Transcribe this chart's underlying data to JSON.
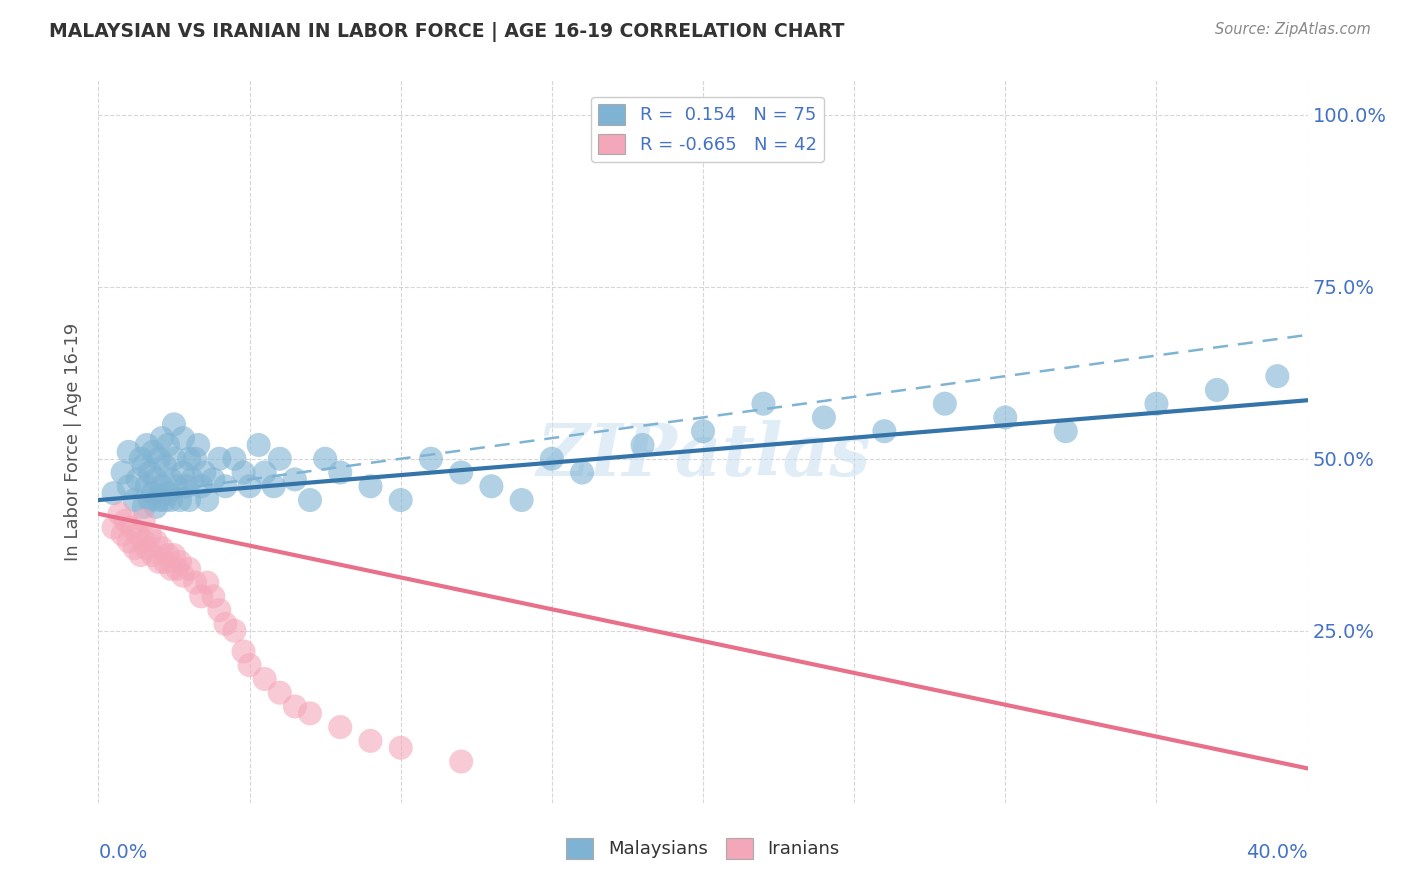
{
  "title": "MALAYSIAN VS IRANIAN IN LABOR FORCE | AGE 16-19 CORRELATION CHART",
  "source": "Source: ZipAtlas.com",
  "ylabel": "In Labor Force | Age 16-19",
  "y_tick_labels": [
    "100.0%",
    "75.0%",
    "50.0%",
    "25.0%"
  ],
  "y_tick_positions": [
    1.0,
    0.75,
    0.5,
    0.25
  ],
  "xlim": [
    0.0,
    0.4
  ],
  "ylim": [
    0.0,
    1.05
  ],
  "legend_r1": "R =  0.154",
  "legend_n1": "N = 75",
  "legend_r2": "R = -0.665",
  "legend_n2": "N = 42",
  "blue_color": "#7fb3d3",
  "pink_color": "#f4a7b9",
  "blue_line_color": "#3574a8",
  "pink_line_color": "#e8708a",
  "dashed_line_color": "#7fb3d3",
  "watermark": "ZIPatlas",
  "blue_line_x0": 0.0,
  "blue_line_y0": 0.44,
  "blue_line_x1": 0.4,
  "blue_line_y1": 0.585,
  "pink_line_x0": 0.0,
  "pink_line_y0": 0.42,
  "pink_line_x1": 0.4,
  "pink_line_y1": 0.05,
  "dashed_line_x0": 0.0,
  "dashed_line_y0": 0.44,
  "dashed_line_x1": 0.4,
  "dashed_line_y1": 0.68,
  "blue_scatter_x": [
    0.005,
    0.008,
    0.01,
    0.01,
    0.012,
    0.013,
    0.014,
    0.015,
    0.015,
    0.016,
    0.016,
    0.017,
    0.017,
    0.018,
    0.018,
    0.019,
    0.019,
    0.02,
    0.02,
    0.021,
    0.021,
    0.022,
    0.022,
    0.023,
    0.023,
    0.024,
    0.024,
    0.025,
    0.025,
    0.026,
    0.027,
    0.028,
    0.028,
    0.029,
    0.03,
    0.03,
    0.031,
    0.032,
    0.033,
    0.034,
    0.035,
    0.036,
    0.038,
    0.04,
    0.042,
    0.045,
    0.048,
    0.05,
    0.053,
    0.055,
    0.058,
    0.06,
    0.065,
    0.07,
    0.075,
    0.08,
    0.09,
    0.1,
    0.11,
    0.12,
    0.13,
    0.14,
    0.15,
    0.16,
    0.18,
    0.2,
    0.22,
    0.24,
    0.26,
    0.28,
    0.3,
    0.32,
    0.35,
    0.37,
    0.39
  ],
  "blue_scatter_y": [
    0.45,
    0.48,
    0.46,
    0.51,
    0.44,
    0.47,
    0.5,
    0.43,
    0.49,
    0.46,
    0.52,
    0.44,
    0.48,
    0.45,
    0.51,
    0.43,
    0.47,
    0.44,
    0.5,
    0.46,
    0.53,
    0.44,
    0.49,
    0.45,
    0.52,
    0.44,
    0.47,
    0.5,
    0.55,
    0.46,
    0.44,
    0.48,
    0.53,
    0.46,
    0.44,
    0.5,
    0.47,
    0.5,
    0.52,
    0.46,
    0.48,
    0.44,
    0.47,
    0.5,
    0.46,
    0.5,
    0.48,
    0.46,
    0.52,
    0.48,
    0.46,
    0.5,
    0.47,
    0.44,
    0.5,
    0.48,
    0.46,
    0.44,
    0.5,
    0.48,
    0.46,
    0.44,
    0.5,
    0.48,
    0.52,
    0.54,
    0.58,
    0.56,
    0.54,
    0.58,
    0.56,
    0.54,
    0.58,
    0.6,
    0.62
  ],
  "pink_scatter_x": [
    0.005,
    0.007,
    0.008,
    0.009,
    0.01,
    0.011,
    0.012,
    0.013,
    0.014,
    0.015,
    0.015,
    0.016,
    0.017,
    0.018,
    0.019,
    0.02,
    0.021,
    0.022,
    0.023,
    0.024,
    0.025,
    0.026,
    0.027,
    0.028,
    0.03,
    0.032,
    0.034,
    0.036,
    0.038,
    0.04,
    0.042,
    0.045,
    0.048,
    0.05,
    0.055,
    0.06,
    0.065,
    0.07,
    0.08,
    0.09,
    0.1,
    0.12
  ],
  "pink_scatter_y": [
    0.4,
    0.42,
    0.39,
    0.41,
    0.38,
    0.4,
    0.37,
    0.39,
    0.36,
    0.38,
    0.41,
    0.37,
    0.39,
    0.36,
    0.38,
    0.35,
    0.37,
    0.35,
    0.36,
    0.34,
    0.36,
    0.34,
    0.35,
    0.33,
    0.34,
    0.32,
    0.3,
    0.32,
    0.3,
    0.28,
    0.26,
    0.25,
    0.22,
    0.2,
    0.18,
    0.16,
    0.14,
    0.13,
    0.11,
    0.09,
    0.08,
    0.06
  ]
}
